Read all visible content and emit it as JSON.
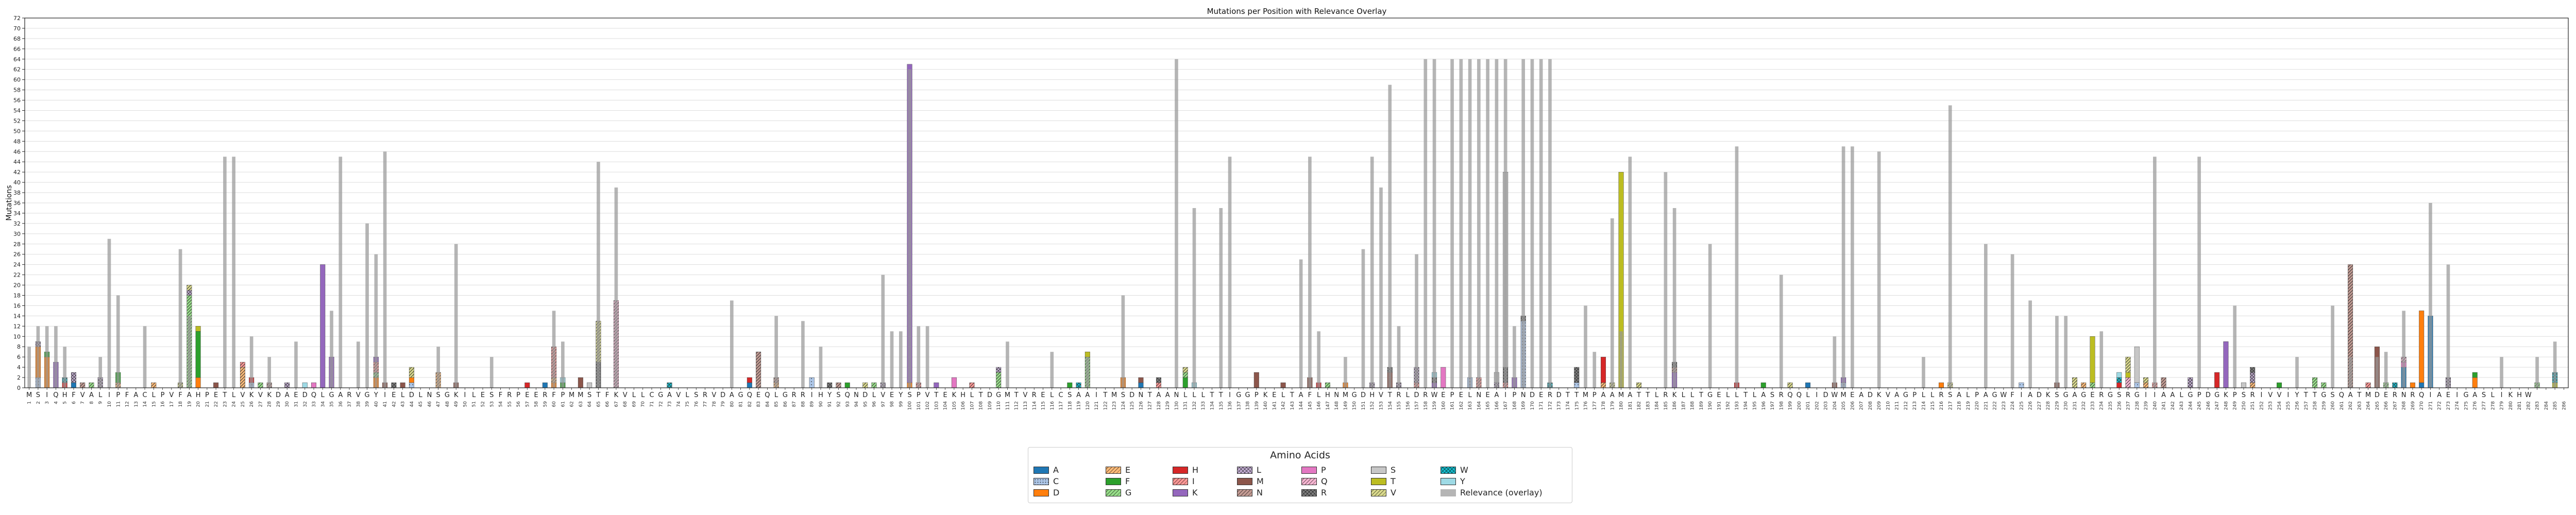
{
  "chart_data": {
    "type": "bar",
    "stacked": true,
    "title": "Mutations per Position with Relevance Overlay",
    "xlabel": "",
    "ylabel": "Mutations",
    "ylim": [
      0,
      72
    ],
    "yticks": [
      0,
      2,
      4,
      6,
      8,
      10,
      12,
      14,
      16,
      18,
      20,
      22,
      24,
      26,
      28,
      30,
      32,
      34,
      36,
      38,
      40,
      42,
      44,
      46,
      48,
      50,
      52,
      54,
      56,
      58,
      60,
      62,
      64,
      66,
      68,
      70,
      72
    ],
    "grid": true,
    "legend_title": "Amino Acids",
    "legend_position": "bottom-center",
    "sequence": "MSIQHFVAL IPFACLPVFAHPETLVKVKDAEDQLGARVGYIELDLNSGKILESFRPEERFPMMSTFKVLLCGAVLSRVDAGQEQLGRRIHYSQNDLVEYSPVTEKHLTDGMTVRELCSAAITMSDNTAANLLLTTIGGPKELTAFLHNMGDHVTRLDRWEPELNEAIPNDERDTTMPAAMATTLRKLLTGELLTLASRQQLIDWMEADKVAGPLLRSALPAGWFIADKSGAGERGSRGIIAALGPDGKPSRIVVIYTTGSQATMDERNRQIAEIGASLIKHW",
    "positions": [
      1,
      2,
      3,
      4,
      5,
      6,
      7,
      8,
      9,
      10,
      11,
      12,
      13,
      14,
      15,
      16,
      17,
      18,
      19,
      20,
      21,
      22,
      23,
      24,
      25,
      26,
      27,
      28,
      29,
      30,
      31,
      32,
      33,
      34,
      35,
      36,
      37,
      38,
      39,
      40,
      41,
      42,
      43,
      44,
      45,
      46,
      47,
      48,
      49,
      50,
      51,
      52,
      53,
      54,
      55,
      56,
      57,
      58,
      59,
      60,
      61,
      62,
      63,
      64,
      65,
      66,
      67,
      68,
      69,
      70,
      71,
      72,
      73,
      74,
      75,
      76,
      77,
      78,
      79,
      80,
      81,
      82,
      83,
      84,
      85,
      86,
      87,
      88,
      89,
      90,
      91,
      92,
      93,
      94,
      95,
      96,
      97,
      98,
      99,
      100,
      101,
      102,
      103,
      104,
      105,
      106,
      107,
      108,
      109,
      110,
      111,
      112,
      113,
      114,
      115,
      116,
      117,
      118,
      119,
      120,
      121,
      122,
      123,
      124,
      125,
      126,
      127,
      128,
      129,
      130,
      131,
      132,
      133,
      134,
      135,
      136,
      137,
      138,
      139,
      140,
      141,
      142,
      143,
      144,
      145,
      146,
      147,
      148,
      149,
      150,
      151,
      152,
      153,
      154,
      155,
      156,
      157,
      158,
      159,
      160,
      161,
      162,
      163,
      164,
      165,
      166,
      167,
      168,
      169,
      170,
      171,
      172,
      173,
      174,
      175,
      176,
      177,
      178,
      179,
      180,
      181,
      182,
      183,
      184,
      185,
      186,
      187,
      188,
      189,
      190,
      191,
      192,
      193,
      194,
      195,
      196,
      197,
      198,
      199,
      200,
      201,
      202,
      203,
      204,
      205,
      206,
      207,
      208,
      209,
      210,
      211,
      212,
      213,
      214,
      215,
      216,
      217,
      218,
      219,
      220,
      221,
      222,
      223,
      224,
      225,
      226,
      227,
      228,
      229,
      230,
      231,
      232,
      233,
      234,
      235,
      236,
      237,
      238,
      239,
      240,
      241,
      242,
      243,
      244,
      245,
      246,
      247,
      248,
      249,
      250,
      251,
      252,
      253,
      254,
      255,
      256,
      257,
      258,
      259,
      260,
      261,
      262,
      263,
      264,
      265,
      266,
      267,
      268,
      269,
      270,
      271,
      272,
      273,
      274,
      275,
      276,
      277,
      278,
      279,
      280,
      281,
      282,
      283,
      284,
      285,
      286
    ],
    "relevance": {
      "1": 8,
      "2": 12,
      "3": 12,
      "4": 12,
      "5": 8,
      "9": 6,
      "10": 29,
      "11": 18,
      "14": 12,
      "18": 27,
      "19": 14,
      "23": 45,
      "24": 45,
      "26": 10,
      "28": 6,
      "31": 9,
      "35": 15,
      "36": 45,
      "38": 9,
      "39": 32,
      "40": 26,
      "41": 46,
      "47": 8,
      "49": 28,
      "53": 6,
      "60": 15,
      "61": 9,
      "65": 44,
      "67": 39,
      "80": 17,
      "85": 14,
      "88": 13,
      "90": 8,
      "97": 22,
      "98": 11,
      "99": 11,
      "100": 62,
      "101": 12,
      "102": 12,
      "111": 9,
      "116": 7,
      "120": 6,
      "124": 18,
      "130": 64,
      "132": 35,
      "135": 35,
      "136": 45,
      "144": 25,
      "145": 45,
      "146": 11,
      "149": 6,
      "151": 27,
      "152": 45,
      "153": 39,
      "154": 59,
      "155": 12,
      "157": 26,
      "158": 64,
      "159": 64,
      "161": 64,
      "162": 64,
      "163": 64,
      "164": 64,
      "165": 64,
      "166": 64,
      "167": 64,
      "168": 12,
      "169": 64,
      "170": 64,
      "171": 64,
      "172": 64,
      "176": 16,
      "177": 7,
      "179": 33,
      "180": 11,
      "181": 45,
      "185": 42,
      "186": 35,
      "190": 28,
      "193": 47,
      "198": 22,
      "204": 10,
      "205": 47,
      "206": 47,
      "209": 46,
      "214": 6,
      "217": 55,
      "221": 28,
      "224": 26,
      "226": 17,
      "229": 14,
      "230": 14,
      "234": 11,
      "240": 45,
      "245": 45,
      "249": 16,
      "256": 6,
      "260": 16,
      "262": 6,
      "265": 6,
      "266": 7,
      "268": 15,
      "271": 36,
      "273": 24,
      "279": 6,
      "283": 6,
      "285": 9
    },
    "series": [
      {
        "name": "A",
        "color": "#1f77b4",
        "hatch": "none",
        "values": {
          "6": 1,
          "59": 1,
          "82": 1,
          "126": 1,
          "201": 1,
          "268": 4,
          "270": 1,
          "271": 14
        }
      },
      {
        "name": "C",
        "color": "#aec7e8",
        "hatch": "dots",
        "values": {
          "2": 2,
          "26": 1,
          "44": 1,
          "89": 2,
          "163": 2,
          "169": 13,
          "175": 1,
          "205": 1,
          "225": 1,
          "238": 1
        }
      },
      {
        "name": "D",
        "color": "#ff7f0e",
        "hatch": "none",
        "values": {
          "2": 6,
          "3": 6,
          "20": 2,
          "40": 2,
          "44": 1,
          "60": 1,
          "100": 1,
          "124": 2,
          "149": 1,
          "216": 1,
          "269": 1,
          "270": 14,
          "276": 2
        }
      },
      {
        "name": "E",
        "color": "#ffbb78",
        "hatch": "hatch",
        "values": {
          "11": 1,
          "15": 1,
          "25": 4,
          "47": 3,
          "60": 1,
          "85": 1,
          "178": 1,
          "232": 1,
          "239": 1,
          "251": 1
        }
      },
      {
        "name": "F",
        "color": "#2ca02c",
        "hatch": "none",
        "values": {
          "3": 1,
          "11": 2,
          "20": 9,
          "61": 1,
          "93": 1,
          "118": 1,
          "131": 2,
          "196": 1,
          "254": 1,
          "276": 1
        }
      },
      {
        "name": "G",
        "color": "#98df8a",
        "hatch": "hatch",
        "values": {
          "8": 1,
          "19": 18,
          "27": 1,
          "40": 1,
          "96": 1,
          "110": 3,
          "120": 6,
          "131": 1,
          "147": 1,
          "233": 1,
          "258": 2,
          "259": 1,
          "266": 1,
          "283": 1
        }
      },
      {
        "name": "H",
        "color": "#d62728",
        "hatch": "none",
        "values": {
          "5": 1,
          "26": 1,
          "57": 1,
          "82": 1,
          "146": 1,
          "178": 5,
          "193": 1,
          "236": 1,
          "247": 3
        }
      },
      {
        "name": "I",
        "color": "#ff9896",
        "hatch": "hatch",
        "values": {
          "25": 1,
          "40": 2,
          "60": 6,
          "101": 1,
          "107": 1,
          "128": 1,
          "157": 1,
          "164": 2,
          "167": 1,
          "240": 1,
          "264": 1
        }
      },
      {
        "name": "K",
        "color": "#9467bd",
        "hatch": "none",
        "values": {
          "4": 5,
          "34": 24,
          "35": 6,
          "40": 1,
          "100": 62,
          "103": 1,
          "159": 1,
          "168": 2,
          "186": 3,
          "205": 1,
          "248": 9
        }
      },
      {
        "name": "L",
        "color": "#c5b0d5",
        "hatch": "cross",
        "values": {
          "2": 1,
          "6": 2,
          "9": 2,
          "19": 1,
          "30": 1,
          "97": 1,
          "110": 1,
          "152": 1,
          "155": 1,
          "157": 3,
          "166": 1,
          "244": 2,
          "251": 2,
          "273": 2
        }
      },
      {
        "name": "M",
        "color": "#8c564b",
        "hatch": "none",
        "values": {
          "22": 1,
          "41": 1,
          "43": 1,
          "49": 1,
          "63": 2,
          "126": 1,
          "139": 3,
          "142": 1,
          "145": 2,
          "154": 3,
          "204": 1,
          "229": 1,
          "265": 8
        }
      },
      {
        "name": "N",
        "color": "#c49c94",
        "hatch": "hatch",
        "values": {
          "7": 1,
          "28": 1,
          "83": 7,
          "85": 1,
          "92": 1,
          "186": 1,
          "241": 2,
          "262": 24
        }
      },
      {
        "name": "P",
        "color": "#e377c2",
        "hatch": "none",
        "values": {
          "33": 1,
          "105": 2,
          "160": 4,
          "268": 1
        }
      },
      {
        "name": "Q",
        "color": "#f7b6d2",
        "hatch": "hatch",
        "values": {
          "67": 17,
          "237": 2,
          "268": 1
        }
      },
      {
        "name": "R",
        "color": "#7f7f7f",
        "hatch": "cross",
        "values": {
          "42": 1,
          "65": 5,
          "91": 1,
          "128": 1,
          "154": 1,
          "159": 1,
          "167": 3,
          "169": 1,
          "175": 3,
          "186": 1,
          "251": 1
        }
      },
      {
        "name": "S",
        "color": "#c7c7c7",
        "hatch": "none",
        "values": {
          "64": 1,
          "166": 2,
          "167": 38,
          "238": 7,
          "250": 1
        }
      },
      {
        "name": "T",
        "color": "#bcbd22",
        "hatch": "none",
        "values": {
          "20": 1,
          "120": 1,
          "180": 42,
          "233": 9,
          "237": 1,
          "285": 1
        }
      },
      {
        "name": "V",
        "color": "#dbdb8d",
        "hatch": "hatch",
        "values": {
          "18": 1,
          "19": 1,
          "44": 2,
          "65": 8,
          "95": 1,
          "131": 1,
          "179": 1,
          "182": 1,
          "199": 1,
          "217": 1,
          "231": 2,
          "237": 3,
          "239": 1
        }
      },
      {
        "name": "W",
        "color": "#17becf",
        "hatch": "cross",
        "values": {
          "5": 1,
          "73": 1,
          "119": 1,
          "172": 1,
          "236": 1,
          "267": 1,
          "285": 2
        }
      },
      {
        "name": "Y",
        "color": "#9edae5",
        "hatch": "none",
        "values": {
          "32": 1,
          "61": 1,
          "132": 1,
          "159": 1,
          "236": 1
        }
      },
      {
        "name": "Relevance (overlay)",
        "color": "#999999",
        "hatch": "none",
        "overlay": true
      }
    ]
  }
}
